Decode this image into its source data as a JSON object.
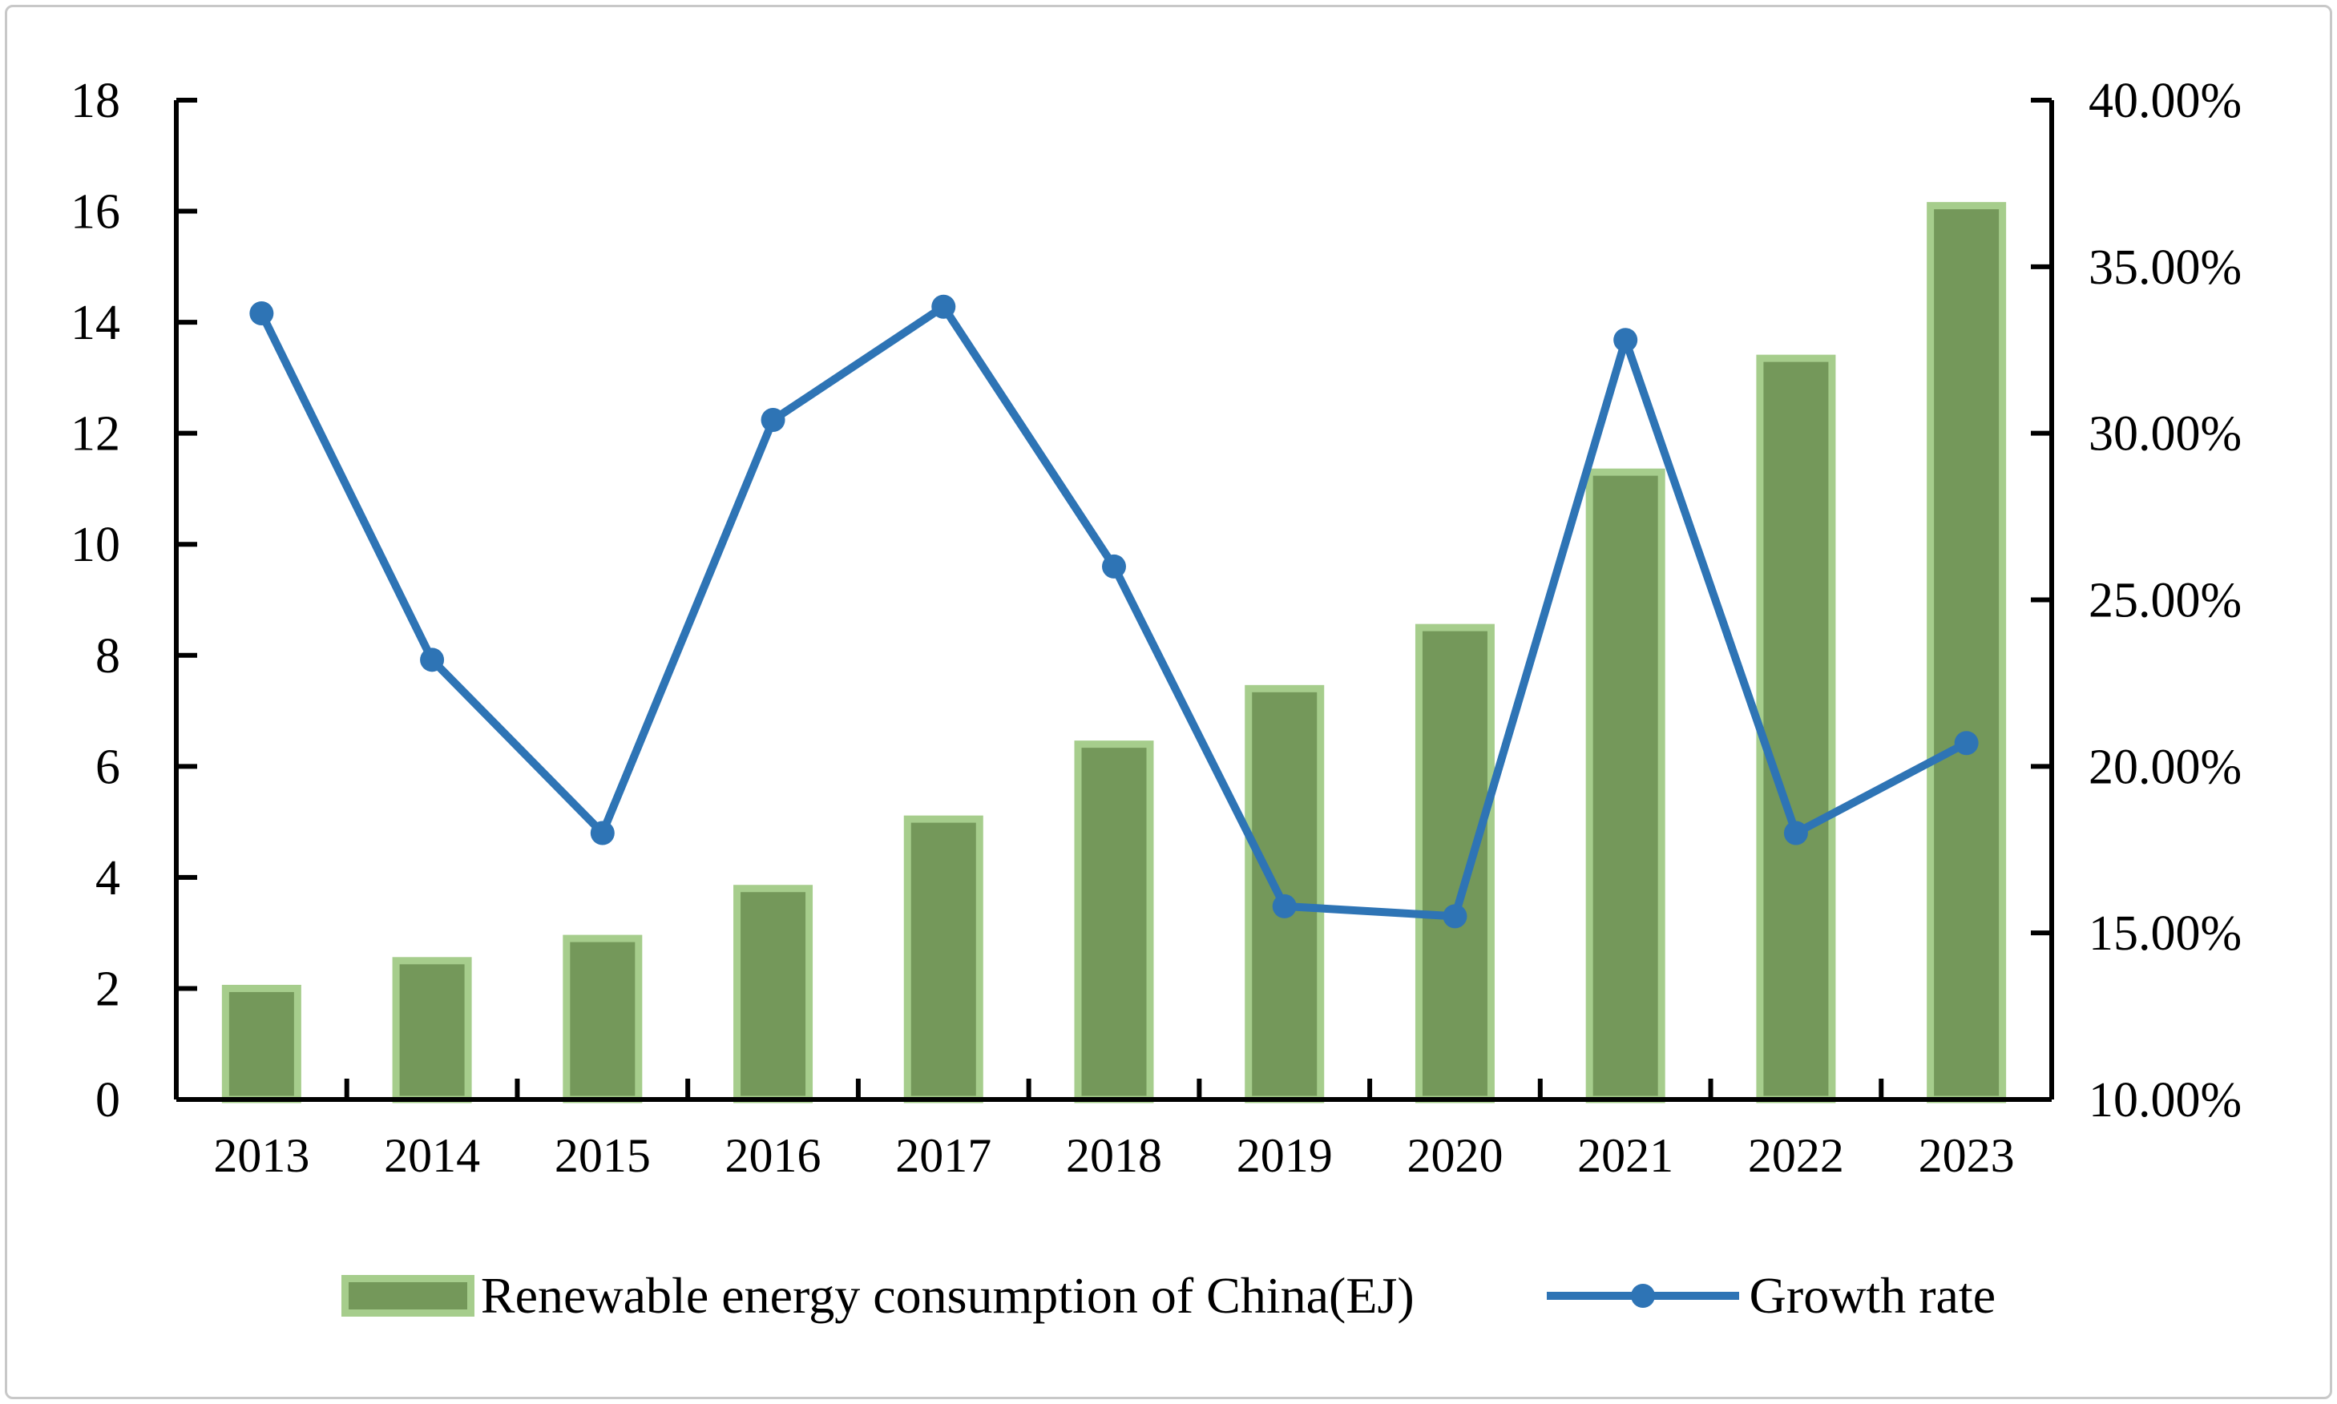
{
  "figure": {
    "background": "#ffffff",
    "frame_border_color": "#c8c8c8"
  },
  "chart_data": {
    "type": "bar",
    "subtype": "combo-bar-line-dual-axis",
    "title": "",
    "xlabel": "",
    "ylabel_left": "",
    "ylabel_right": "",
    "grid": false,
    "legend_position": "bottom",
    "categories": [
      "2013",
      "2014",
      "2015",
      "2016",
      "2017",
      "2018",
      "2019",
      "2020",
      "2021",
      "2022",
      "2023"
    ],
    "series": [
      {
        "name": "Renewable energy consumption of China(EJ)",
        "type": "bar",
        "axis": "left",
        "values": [
          2.0,
          2.5,
          2.9,
          3.8,
          5.05,
          6.4,
          7.4,
          8.5,
          11.3,
          13.35,
          16.1
        ],
        "fill": "#74985a",
        "border": "#a6cd8c"
      },
      {
        "name": "Growth rate",
        "type": "line",
        "axis": "right",
        "unit": "%",
        "values": [
          33.6,
          23.2,
          18.0,
          30.4,
          33.8,
          26.0,
          15.8,
          15.5,
          32.8,
          18.0,
          20.7
        ],
        "color": "#2e74b5"
      }
    ],
    "left_axis": {
      "min": 0,
      "max": 18,
      "tick_values": [
        0,
        2,
        4,
        6,
        8,
        10,
        12,
        14,
        16,
        18
      ],
      "tick_labels": [
        "0",
        "2",
        "4",
        "6",
        "8",
        "10",
        "12",
        "14",
        "16",
        "18"
      ]
    },
    "right_axis": {
      "min": 10,
      "max": 40,
      "tick_values": [
        10,
        15,
        20,
        25,
        30,
        35,
        40
      ],
      "tick_labels": [
        "10.00%",
        "15.00%",
        "20.00%",
        "25.00%",
        "30.00%",
        "35.00%",
        "40.00%"
      ]
    },
    "axis_color": "#000000"
  }
}
